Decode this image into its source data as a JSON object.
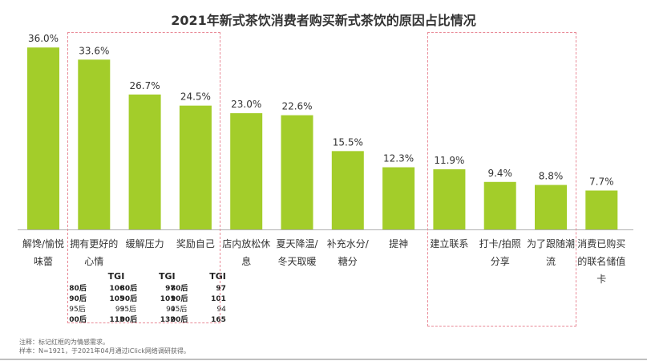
{
  "chart_data": {
    "type": "bar",
    "title": "2021年新式茶饮消费者购买新式茶饮的原因占比情况",
    "categories": [
      [
        "解馋/愉悦",
        "味蕾"
      ],
      [
        "拥有更好的",
        "心情"
      ],
      [
        "缓解压力"
      ],
      [
        "奖励自己"
      ],
      [
        "店内放松休",
        "息"
      ],
      [
        "夏天降温/",
        "冬天取暖"
      ],
      [
        "补充水分/",
        "糖分"
      ],
      [
        "提神"
      ],
      [
        "建立联系"
      ],
      [
        "打卡/拍照",
        "分享"
      ],
      [
        "为了跟随潮",
        "流"
      ],
      [
        "消费已购买",
        "的联名储值",
        "卡"
      ]
    ],
    "values": [
      36.0,
      33.6,
      26.7,
      24.5,
      23.0,
      22.6,
      15.5,
      12.3,
      11.9,
      9.4,
      8.8,
      7.7
    ],
    "value_labels": [
      "36.0%",
      "33.6%",
      "26.7%",
      "24.5%",
      "23.0%",
      "22.6%",
      "15.5%",
      "12.3%",
      "11.9%",
      "9.4%",
      "8.8%",
      "7.7%"
    ],
    "ylim": [
      0,
      40
    ],
    "grid": false,
    "bar_color": "#a3cd2a"
  },
  "tgi": {
    "header": "TGI",
    "tables": [
      {
        "category_index": 1,
        "rows": [
          [
            "80后",
            "106"
          ],
          [
            "90后",
            "105"
          ],
          [
            "95后",
            "93"
          ],
          [
            "00后",
            "113"
          ]
        ]
      },
      {
        "category_index": 2,
        "rows": [
          [
            "80后",
            "97"
          ],
          [
            "90后",
            "101"
          ],
          [
            "95后",
            "94"
          ],
          [
            "00后",
            "132"
          ]
        ]
      },
      {
        "category_index": 3,
        "rows": [
          [
            "80后",
            "97"
          ],
          [
            "90后",
            "101"
          ],
          [
            "95后",
            "94"
          ],
          [
            "00后",
            "165"
          ]
        ]
      }
    ],
    "bold_rows": [
      0,
      1,
      3
    ]
  },
  "notes": [
    "注释：标记红框的为情感需求。",
    "样本：N=1921，于2021年04月通过iClick网络调研获得。"
  ],
  "colors": {
    "bar": "#a3cd2a",
    "frame": "#e98a97",
    "text": "#333333"
  }
}
